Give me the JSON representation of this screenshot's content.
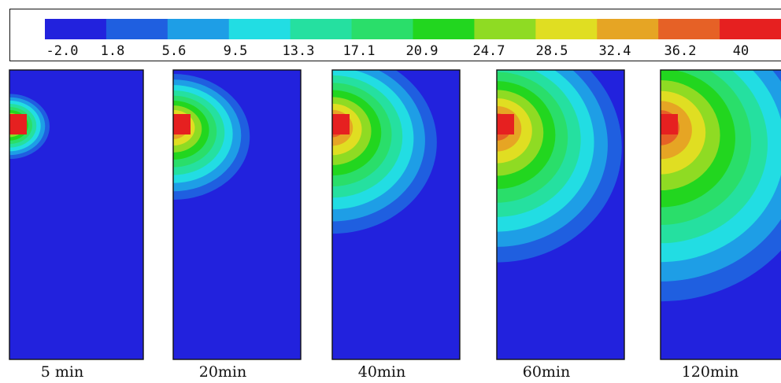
{
  "chart_data": {
    "type": "heatmap",
    "colorbar": {
      "colors": [
        "#2222dd",
        "#1f5fe0",
        "#1e9ee6",
        "#22dde3",
        "#25e0a0",
        "#2ade6a",
        "#22d61f",
        "#8fdb23",
        "#e0de22",
        "#e6a524",
        "#e66126",
        "#e62020"
      ],
      "tick_labels": [
        "-2.0",
        "1.8",
        "5.6",
        "9.5",
        "13.3",
        "17.1",
        "20.9",
        "24.7",
        "28.5",
        "32.4",
        "36.2",
        "40"
      ],
      "min": -2.0,
      "max": 40
    },
    "panels": [
      {
        "label": "5 min",
        "time_min": 5,
        "radial_extent": 0.3,
        "vertical_extent": 0.15
      },
      {
        "label": "20min",
        "time_min": 20,
        "radial_extent": 0.6,
        "vertical_extent": 0.29
      },
      {
        "label": "40min",
        "time_min": 40,
        "radial_extent": 0.82,
        "vertical_extent": 0.42
      },
      {
        "label": "60min",
        "time_min": 60,
        "radial_extent": 0.98,
        "vertical_extent": 0.53
      },
      {
        "label": "120min",
        "time_min": 120,
        "radial_extent": 1.25,
        "vertical_extent": 0.68
      }
    ]
  }
}
